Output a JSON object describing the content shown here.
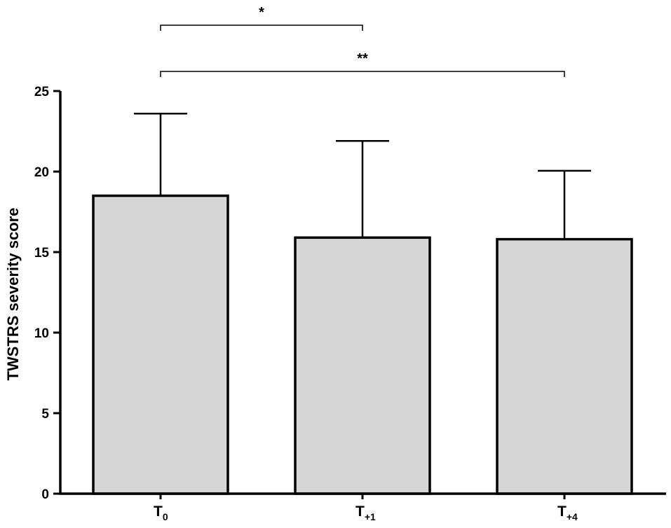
{
  "chart_data": {
    "type": "bar",
    "categories": [
      {
        "main": "T",
        "sub": "0"
      },
      {
        "main": "T",
        "sub": "+1"
      },
      {
        "main": "T",
        "sub": "+4"
      }
    ],
    "values": [
      18.5,
      15.9,
      15.8
    ],
    "error_upper": [
      23.6,
      21.9,
      20.05
    ],
    "ylabel": "TWSTRS severity score",
    "xlabel": "",
    "ylim": [
      0,
      25
    ],
    "yticks": [
      0,
      5,
      10,
      15,
      20,
      25
    ],
    "bar_color": "#d6d6d6",
    "edge_color": "#000000",
    "significance": [
      {
        "from": 0,
        "to": 1,
        "label": "*"
      },
      {
        "from": 0,
        "to": 2,
        "label": "**"
      }
    ]
  }
}
